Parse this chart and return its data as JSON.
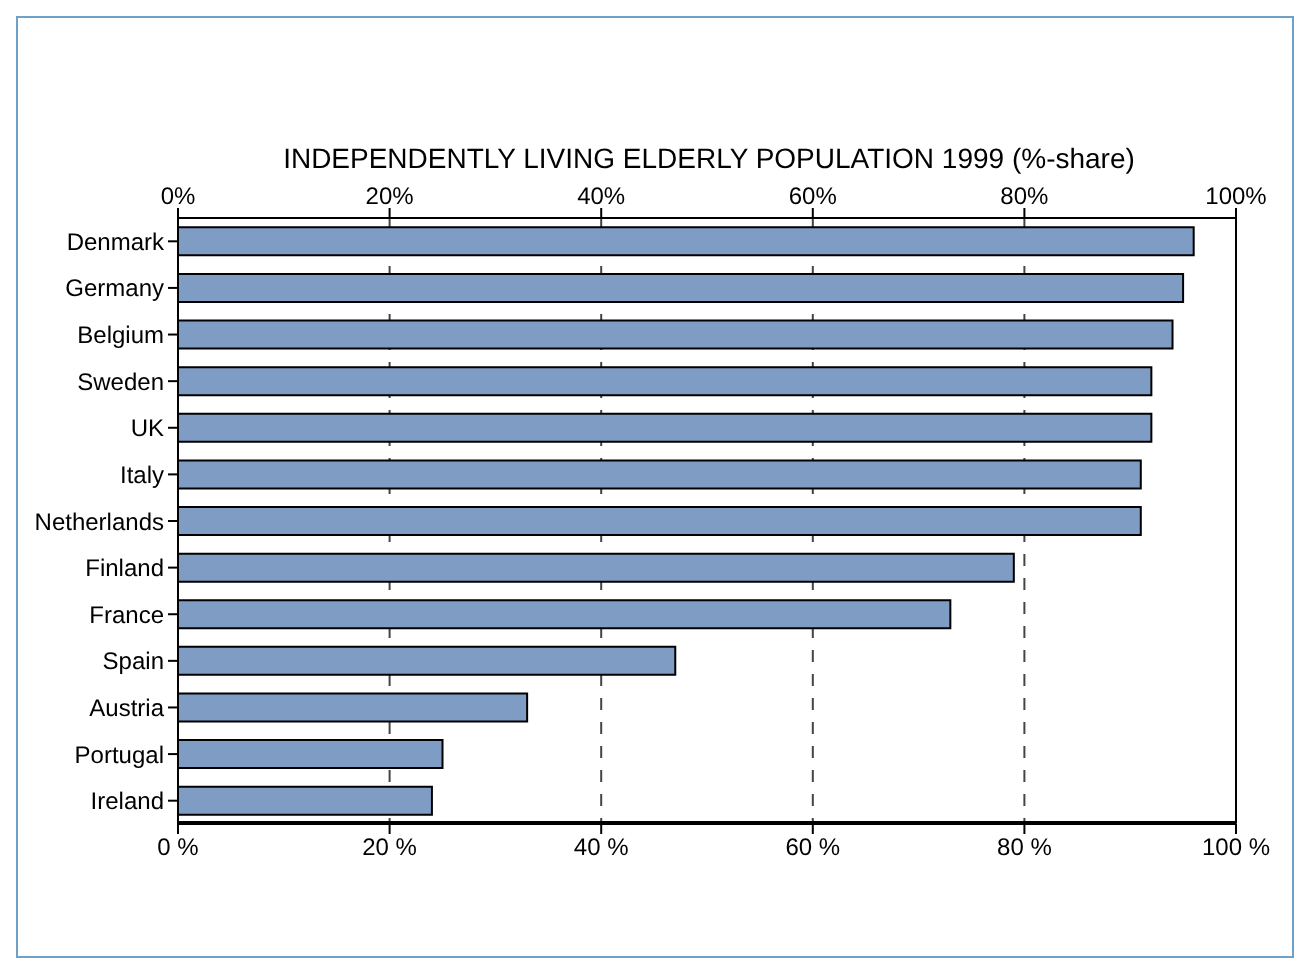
{
  "chart_data": {
    "type": "bar",
    "orientation": "horizontal",
    "title": "INDEPENDENTLY LIVING ELDERLY POPULATION 1999 (%-share)",
    "categories": [
      "Denmark",
      "Germany",
      "Belgium",
      "Sweden",
      "UK",
      "Italy",
      "Netherlands",
      "Finland",
      "France",
      "Spain",
      "Austria",
      "Portugal",
      "Ireland"
    ],
    "values": [
      96,
      95,
      94,
      92,
      92,
      91,
      91,
      79,
      73,
      47,
      33,
      25,
      24
    ],
    "color": "#7f9cc4",
    "xlim": [
      0,
      100
    ],
    "xticks": [
      {
        "value": 0,
        "label": "0 %"
      },
      {
        "value": 20,
        "label": "20 %"
      },
      {
        "value": 40,
        "label": "40 %"
      },
      {
        "value": 60,
        "label": "60 %"
      },
      {
        "value": 80,
        "label": "80 %"
      },
      {
        "value": 100,
        "label": "100 %"
      }
    ],
    "x2lim": [
      0,
      100
    ],
    "x2ticks": [
      {
        "value": 0,
        "label": "0%"
      },
      {
        "value": 20,
        "label": "20%"
      },
      {
        "value": 40,
        "label": "40%"
      },
      {
        "value": 60,
        "label": "60%"
      },
      {
        "value": 80,
        "label": "80%"
      },
      {
        "value": 100,
        "label": "100%"
      }
    ],
    "grid": "x",
    "line_style": "dashed"
  }
}
